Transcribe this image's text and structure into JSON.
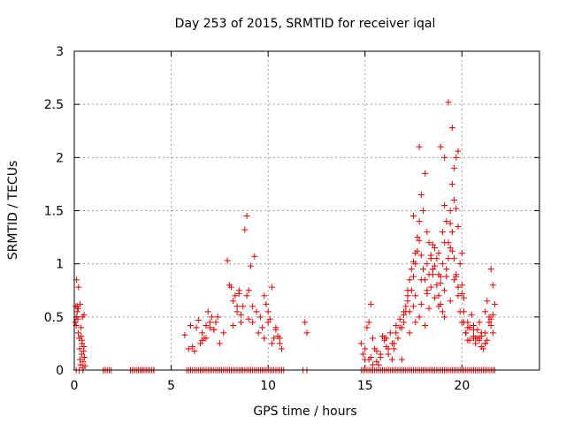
{
  "chart_data": {
    "type": "scatter",
    "title": "Day 253 of 2015, SRMTID for receiver iqal",
    "xlabel": "GPS time / hours",
    "ylabel": "SRMTID / TECUs",
    "xlim": [
      0,
      24
    ],
    "ylim": [
      0,
      3
    ],
    "xticks": [
      0,
      5,
      10,
      15,
      20
    ],
    "xtick_labels": [
      "0",
      "5",
      "10",
      "15",
      "20"
    ],
    "yticks": [
      0,
      0.5,
      1,
      1.5,
      2,
      2.5,
      3
    ],
    "ytick_labels": [
      "0",
      "0.5",
      "1",
      "1.5",
      "2",
      "2.5",
      "3"
    ],
    "grid": true,
    "marker": "+",
    "color": "#e00000",
    "series": [
      {
        "name": "SRMTID",
        "x": [
          0.05,
          0.08,
          0.1,
          0.12,
          0.15,
          0.18,
          0.2,
          0.22,
          0.25,
          0.28,
          0.3,
          0.32,
          0.35,
          0.38,
          0.4,
          0.42,
          0.45,
          0.48,
          0.5,
          0.52,
          0.55,
          0.1,
          0.2,
          0.3,
          0.4,
          0.5,
          0.15,
          0.35,
          0.45,
          1.5,
          1.7,
          1.9,
          2.9,
          3.1,
          3.3,
          3.5,
          3.7,
          3.9,
          4.1,
          5.7,
          5.9,
          6.0,
          6.2,
          6.4,
          6.5,
          6.6,
          6.7,
          6.8,
          6.9,
          7.0,
          7.1,
          7.2,
          7.3,
          7.5,
          7.7,
          7.9,
          8.0,
          8.1,
          8.2,
          8.3,
          8.4,
          8.5,
          8.6,
          8.7,
          8.8,
          8.9,
          9.0,
          9.1,
          9.2,
          9.3,
          9.4,
          9.5,
          9.6,
          9.7,
          9.8,
          9.9,
          10.0,
          10.1,
          10.2,
          10.3,
          10.4,
          10.5,
          10.6,
          10.7,
          11.9,
          12.0,
          6.1,
          6.3,
          6.8,
          7.0,
          7.2,
          8.2,
          8.4,
          8.5,
          8.6,
          8.9,
          9.0,
          9.2,
          9.8,
          10.0,
          10.2,
          10.4,
          10.6,
          7.4,
          6.6,
          14.8,
          14.9,
          15.0,
          15.1,
          15.2,
          15.3,
          15.4,
          15.5,
          15.6,
          15.7,
          15.8,
          15.9,
          16.0,
          16.1,
          16.2,
          16.3,
          16.4,
          16.5,
          16.6,
          16.7,
          16.8,
          16.9,
          17.0,
          17.1,
          17.2,
          17.3,
          17.4,
          17.5,
          17.6,
          17.7,
          17.8,
          17.9,
          18.0,
          18.1,
          18.2,
          18.3,
          18.4,
          18.5,
          18.6,
          18.7,
          18.8,
          18.9,
          19.0,
          19.1,
          19.2,
          19.3,
          19.4,
          19.5,
          19.6,
          19.7,
          19.8,
          19.9,
          20.0,
          20.1,
          20.2,
          20.3,
          20.4,
          20.5,
          20.6,
          20.7,
          20.8,
          20.9,
          21.0,
          21.1,
          21.2,
          21.3,
          21.4,
          21.5,
          21.6,
          21.7,
          15.0,
          15.2,
          15.4,
          15.8,
          16.0,
          16.4,
          16.8,
          17.0,
          17.2,
          17.4,
          17.5,
          17.6,
          17.7,
          17.8,
          17.9,
          18.0,
          18.1,
          18.2,
          18.3,
          18.4,
          18.5,
          18.6,
          18.7,
          18.8,
          18.9,
          19.0,
          19.1,
          19.2,
          19.3,
          19.4,
          19.5,
          19.6,
          19.7,
          19.8,
          19.9,
          20.0,
          20.2,
          20.4,
          20.6,
          20.8,
          21.0,
          21.2,
          21.4,
          21.6,
          17.3,
          17.6,
          17.9,
          18.2,
          18.5,
          18.8,
          19.1,
          19.4,
          19.7,
          20.0,
          20.3,
          20.6,
          20.9,
          21.2,
          21.5,
          16.2,
          16.6,
          17.1,
          18.4,
          19.0,
          19.6,
          20.1,
          17.2,
          17.5,
          17.8,
          18.1,
          18.3,
          18.6,
          18.9,
          19.2,
          19.5,
          19.8,
          20.1,
          20.4,
          20.7,
          21.0,
          21.3,
          21.6,
          15.3,
          15.6,
          16.1,
          16.5,
          16.9,
          17.0,
          17.3,
          17.6,
          17.9,
          18.2,
          18.5,
          18.8,
          19.1,
          19.4,
          19.7,
          20.0,
          20.3,
          20.6,
          20.9,
          21.2,
          21.5,
          19.3,
          19.5,
          19.6,
          19.1,
          18.9,
          19.8,
          17.8,
          17.5
        ],
        "y": [
          0.45,
          0.6,
          0.5,
          0.85,
          0.55,
          0.48,
          0.35,
          0.78,
          0.3,
          0.2,
          0.1,
          0.05,
          0.4,
          0.15,
          0.25,
          0.5,
          0.08,
          0.18,
          0.52,
          0.12,
          0.04,
          0.42,
          0.58,
          0.62,
          0.28,
          0.22,
          0.6,
          0.32,
          0.02,
          0.0,
          0.0,
          0.0,
          0.0,
          0.0,
          0.0,
          0.0,
          0.0,
          0.0,
          0.0,
          0.33,
          0.2,
          0.42,
          0.18,
          0.47,
          0.25,
          0.35,
          0.3,
          0.42,
          0.55,
          0.4,
          0.5,
          0.38,
          0.45,
          0.25,
          0.35,
          1.03,
          0.8,
          0.78,
          0.65,
          0.7,
          0.55,
          0.72,
          0.45,
          0.6,
          1.32,
          1.45,
          0.75,
          0.98,
          0.45,
          1.07,
          0.55,
          0.35,
          0.5,
          0.4,
          0.7,
          0.62,
          0.55,
          0.48,
          0.78,
          0.3,
          0.4,
          0.32,
          0.25,
          0.2,
          0.45,
          0.35,
          0.22,
          0.4,
          0.3,
          0.45,
          0.38,
          0.42,
          0.6,
          0.75,
          0.52,
          0.7,
          0.48,
          0.6,
          0.3,
          0.45,
          0.25,
          0.38,
          0.3,
          0.5,
          0.28,
          0.25,
          0.15,
          0.1,
          0.4,
          0.45,
          0.62,
          0.3,
          0.2,
          0.18,
          0.05,
          0.12,
          0.32,
          0.28,
          0.22,
          0.15,
          0.35,
          0.1,
          0.25,
          0.42,
          0.3,
          0.48,
          0.4,
          0.55,
          0.6,
          0.7,
          0.85,
          0.95,
          1.02,
          1.1,
          1.25,
          1.4,
          1.65,
          1.5,
          1.85,
          1.3,
          1.2,
          1.08,
          0.95,
          1.15,
          1.05,
          0.9,
          0.88,
          1.3,
          1.55,
          1.4,
          1.2,
          1.5,
          1.75,
          1.6,
          2.0,
          1.35,
          1.0,
          0.8,
          0.45,
          0.35,
          0.28,
          0.4,
          0.52,
          0.3,
          0.25,
          0.38,
          0.45,
          0.32,
          0.2,
          0.55,
          0.65,
          0.5,
          0.42,
          0.35,
          0.62,
          0.2,
          0.1,
          0.05,
          0.15,
          0.3,
          0.25,
          0.4,
          0.52,
          0.65,
          0.75,
          0.88,
          1.0,
          1.12,
          1.22,
          1.08,
          0.95,
          0.85,
          0.72,
          0.9,
          1.05,
          1.18,
          0.98,
          0.8,
          0.7,
          0.62,
          0.55,
          0.75,
          0.88,
          1.05,
          1.15,
          1.3,
          1.05,
          0.9,
          0.7,
          0.55,
          0.45,
          0.35,
          0.28,
          0.42,
          0.3,
          0.22,
          0.35,
          0.45,
          0.52,
          0.35,
          0.45,
          0.62,
          0.75,
          0.95,
          1.1,
          1.2,
          1.38,
          1.52,
          1.1,
          0.4,
          0.32,
          0.28,
          0.25,
          0.48,
          0.2,
          0.35,
          0.55,
          0.78,
          1.0,
          0.85,
          0.68,
          0.75,
          0.6,
          0.5,
          0.42,
          0.58,
          0.68,
          0.82,
          0.95,
          1.12,
          0.78,
          0.55,
          0.4,
          0.3,
          0.35,
          0.28,
          0.8,
          0.12,
          0.08,
          0.3,
          0.2,
          0.1,
          0.45,
          0.55,
          0.7,
          0.85,
          1.0,
          0.9,
          0.6,
          0.5,
          0.65,
          0.88,
          0.72,
          0.45,
          0.38,
          0.3,
          0.25,
          0.95,
          2.52,
          2.28,
          1.9,
          2.0,
          2.1,
          2.06,
          2.1,
          1.45
        ],
        "zero_x": [
          0.1,
          0.25,
          0.45,
          1.5,
          1.6,
          1.8,
          2.9,
          3.0,
          3.1,
          3.2,
          3.3,
          3.4,
          3.5,
          3.6,
          3.7,
          3.8,
          3.9,
          4.0,
          4.1,
          5.8,
          5.9,
          6.0,
          6.1,
          6.2,
          6.3,
          6.4,
          6.5,
          6.6,
          6.7,
          6.8,
          6.9,
          7.0,
          7.1,
          7.2,
          7.3,
          7.4,
          7.5,
          7.6,
          7.7,
          7.8,
          7.9,
          8.0,
          8.1,
          8.2,
          8.3,
          8.4,
          8.5,
          8.6,
          8.7,
          8.8,
          8.9,
          9.0,
          9.1,
          9.2,
          9.3,
          9.4,
          9.5,
          9.6,
          9.7,
          9.8,
          9.9,
          10.0,
          10.1,
          10.2,
          10.3,
          10.4,
          10.5,
          10.6,
          10.7,
          10.8,
          11.8,
          12.0,
          14.8,
          14.9,
          15.0,
          15.1,
          15.2,
          15.3,
          15.4,
          15.5,
          15.6,
          15.7,
          15.8,
          15.9,
          16.0,
          16.1,
          16.2,
          16.3,
          16.4,
          16.5,
          16.6,
          16.7,
          16.8,
          16.9,
          17.0,
          17.1,
          17.2,
          17.3,
          17.4,
          17.5,
          17.6,
          17.7,
          17.8,
          17.9,
          18.0,
          18.1,
          18.2,
          18.3,
          18.4,
          18.5,
          18.6,
          18.7,
          18.8,
          18.9,
          19.0,
          19.1,
          19.2,
          19.3,
          19.4,
          19.5,
          19.6,
          19.7,
          19.8,
          19.9,
          20.0,
          20.1,
          20.2,
          20.3,
          20.4,
          20.5,
          20.6,
          20.7,
          20.8,
          20.9,
          21.0,
          21.1,
          21.2,
          21.3,
          21.4,
          21.5,
          21.6,
          21.7
        ]
      }
    ]
  }
}
